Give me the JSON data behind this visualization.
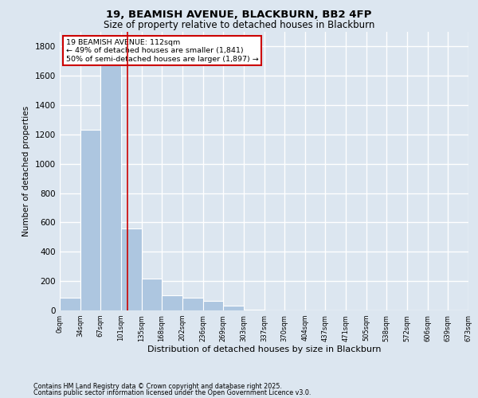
{
  "title_line1": "19, BEAMISH AVENUE, BLACKBURN, BB2 4FP",
  "title_line2": "Size of property relative to detached houses in Blackburn",
  "xlabel": "Distribution of detached houses by size in Blackburn",
  "ylabel": "Number of detached properties",
  "footnote_line1": "Contains HM Land Registry data © Crown copyright and database right 2025.",
  "footnote_line2": "Contains public sector information licensed under the Open Government Licence v3.0.",
  "annotation_line1": "19 BEAMISH AVENUE: 112sqm",
  "annotation_line2": "← 49% of detached houses are smaller (1,841)",
  "annotation_line3": "50% of semi-detached houses are larger (1,897) →",
  "property_size": 112,
  "bin_edges": [
    0,
    34,
    67,
    101,
    135,
    168,
    202,
    236,
    269,
    303,
    337,
    370,
    404,
    437,
    471,
    505,
    538,
    572,
    606,
    639,
    673
  ],
  "bar_heights": [
    85,
    1230,
    1720,
    560,
    215,
    105,
    85,
    65,
    35,
    5,
    0,
    0,
    0,
    0,
    0,
    0,
    0,
    0,
    0,
    0
  ],
  "bar_color": "#adc6e0",
  "line_color": "#cc0000",
  "background_color": "#dce6f0",
  "plot_background": "#dce6f0",
  "grid_color": "#ffffff",
  "annotation_box_edgecolor": "#cc0000",
  "annotation_box_facecolor": "#ffffff",
  "ylim": [
    0,
    1900
  ],
  "yticks": [
    0,
    200,
    400,
    600,
    800,
    1000,
    1200,
    1400,
    1600,
    1800
  ]
}
